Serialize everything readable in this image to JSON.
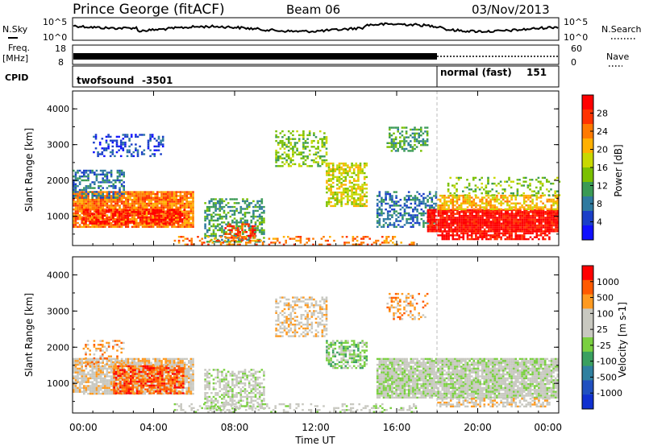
{
  "header": {
    "station": "Prince George (fitACF)",
    "beam": "Beam 06",
    "date": "03/Nov/2013"
  },
  "top_panels": {
    "nsky_label": "N.Sky",
    "nsky_ticks": [
      "10^5",
      "10^0"
    ],
    "nsearch_label": "N.Search",
    "nsearch_ticks": [
      "10^5",
      "10^0"
    ],
    "freq_label_1": "Freq.",
    "freq_label_2": "[MHz]",
    "freq_ticks": [
      "18",
      "8"
    ],
    "nave_label": "Nave",
    "nave_ticks": [
      "60",
      "0"
    ],
    "cpid_label": "CPID",
    "cpid_segments": [
      {
        "name": "twofsound",
        "id": "-3501",
        "start_hour": 0,
        "end_hour": 18
      },
      {
        "name": "normal (fast)",
        "id": "151",
        "start_hour": 18,
        "end_hour": 24
      }
    ]
  },
  "chart_data": [
    {
      "type": "heatmap",
      "title": "",
      "ylabel": "Slant Range [km]",
      "xlabel": "",
      "xlim": [
        0,
        24
      ],
      "ylim": [
        180,
        4500
      ],
      "yticks": [
        "1000",
        "2000",
        "3000",
        "4000"
      ],
      "colorbar_label": "Power [dB]",
      "colorbar_ticks": [
        "28",
        "24",
        "20",
        "16",
        "12",
        "8",
        "4"
      ],
      "colors": [
        "#ff0000",
        "#ff3300",
        "#ff7a00",
        "#ffb000",
        "#c8d800",
        "#7ac000",
        "#3a9a55",
        "#2f7aa0",
        "#1a3fc8",
        "#1010ff"
      ],
      "scatter_regions": [
        {
          "t0": 0.0,
          "t1": 6.0,
          "r0": 700,
          "r1": 1700,
          "level": 2,
          "density": 0.9
        },
        {
          "t0": 0.5,
          "t1": 5.5,
          "r0": 800,
          "r1": 1200,
          "level": 0,
          "density": 0.6
        },
        {
          "t0": 0.0,
          "t1": 2.5,
          "r0": 1500,
          "r1": 2300,
          "level": 7,
          "density": 0.5
        },
        {
          "t0": 1.0,
          "t1": 4.5,
          "r0": 2700,
          "r1": 3300,
          "level": 8,
          "density": 0.3
        },
        {
          "t0": 6.5,
          "t1": 9.5,
          "r0": 300,
          "r1": 1500,
          "level": 6,
          "density": 0.5
        },
        {
          "t0": 7.5,
          "t1": 9.0,
          "r0": 400,
          "r1": 800,
          "level": 1,
          "density": 0.5
        },
        {
          "t0": 10.0,
          "t1": 12.5,
          "r0": 2400,
          "r1": 3400,
          "level": 5,
          "density": 0.4
        },
        {
          "t0": 12.5,
          "t1": 14.5,
          "r0": 1300,
          "r1": 2500,
          "level": 4,
          "density": 0.6
        },
        {
          "t0": 15.5,
          "t1": 17.5,
          "r0": 2800,
          "r1": 3500,
          "level": 6,
          "density": 0.45
        },
        {
          "t0": 15.0,
          "t1": 18.0,
          "r0": 700,
          "r1": 1700,
          "level": 7,
          "density": 0.5
        },
        {
          "t0": 17.5,
          "t1": 24.0,
          "r0": 600,
          "r1": 1200,
          "level": 0,
          "density": 0.95
        },
        {
          "t0": 18.0,
          "t1": 23.5,
          "r0": 350,
          "r1": 600,
          "level": 0,
          "density": 0.7
        },
        {
          "t0": 18.0,
          "t1": 24.0,
          "r0": 1200,
          "r1": 1600,
          "level": 3,
          "density": 0.6
        },
        {
          "t0": 18.5,
          "t1": 24.0,
          "r0": 1600,
          "r1": 2100,
          "level": 5,
          "density": 0.25
        },
        {
          "t0": 5.0,
          "t1": 17.0,
          "r0": 200,
          "r1": 450,
          "level": 2,
          "density": 0.3
        }
      ]
    },
    {
      "type": "heatmap",
      "title": "",
      "ylabel": "Slant Range [km]",
      "xlabel": "Time UT",
      "xlim": [
        0,
        24
      ],
      "ylim": [
        180,
        4500
      ],
      "yticks": [
        "1000",
        "2000",
        "3000",
        "4000"
      ],
      "xticks": [
        "00:00",
        "04:00",
        "08:00",
        "12:00",
        "16:00",
        "20:00",
        "00:00"
      ],
      "colorbar_label": "Velocity [m s-1]",
      "colorbar_ticks": [
        "1000",
        "500",
        "100",
        "25",
        "-25",
        "-100",
        "-500",
        "-1000"
      ],
      "colors": [
        "#ff0000",
        "#ff5a00",
        "#ff9a20",
        "#c8c8c0",
        "#c8c8c0",
        "#7ad040",
        "#3aa060",
        "#2f80a0",
        "#2050c0",
        "#1030d0"
      ],
      "scatter_regions": [
        {
          "t0": 0.0,
          "t1": 6.0,
          "r0": 700,
          "r1": 1700,
          "level": 3,
          "density": 0.85
        },
        {
          "t0": 2.0,
          "t1": 5.5,
          "r0": 700,
          "r1": 1500,
          "level": 1,
          "density": 0.7
        },
        {
          "t0": 0.5,
          "t1": 2.5,
          "r0": 1500,
          "r1": 2200,
          "level": 2,
          "density": 0.3
        },
        {
          "t0": 6.5,
          "t1": 9.5,
          "r0": 300,
          "r1": 1400,
          "level": 4,
          "density": 0.5
        },
        {
          "t0": 10.0,
          "t1": 12.5,
          "r0": 2300,
          "r1": 3400,
          "level": 3,
          "density": 0.45
        },
        {
          "t0": 12.5,
          "t1": 14.5,
          "r0": 1400,
          "r1": 2200,
          "level": 5,
          "density": 0.6
        },
        {
          "t0": 15.5,
          "t1": 17.5,
          "r0": 2800,
          "r1": 3500,
          "level": 2,
          "density": 0.35
        },
        {
          "t0": 15.0,
          "t1": 24.0,
          "r0": 600,
          "r1": 1700,
          "level": 4,
          "density": 0.9
        },
        {
          "t0": 18.0,
          "t1": 23.5,
          "r0": 350,
          "r1": 600,
          "level": 3,
          "density": 0.6
        },
        {
          "t0": 5.0,
          "t1": 17.0,
          "r0": 200,
          "r1": 450,
          "level": 4,
          "density": 0.3
        }
      ]
    }
  ]
}
